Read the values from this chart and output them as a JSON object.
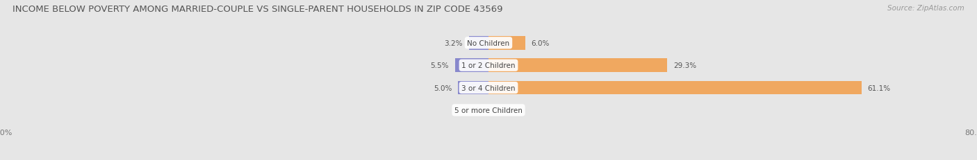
{
  "title": "INCOME BELOW POVERTY AMONG MARRIED-COUPLE VS SINGLE-PARENT HOUSEHOLDS IN ZIP CODE 43569",
  "source": "Source: ZipAtlas.com",
  "categories": [
    "No Children",
    "1 or 2 Children",
    "3 or 4 Children",
    "5 or more Children"
  ],
  "married_values": [
    3.2,
    5.5,
    5.0,
    0.0
  ],
  "single_values": [
    6.0,
    29.3,
    61.1,
    0.0
  ],
  "married_color": "#8888cc",
  "single_color": "#f0a860",
  "background_color": "#f2f2f2",
  "row_bg_color": "#e6e6e6",
  "axis_limit": 80.0,
  "title_fontsize": 9.5,
  "label_fontsize": 7.5,
  "tick_fontsize": 8,
  "source_fontsize": 7.5,
  "value_fontsize": 7.5
}
